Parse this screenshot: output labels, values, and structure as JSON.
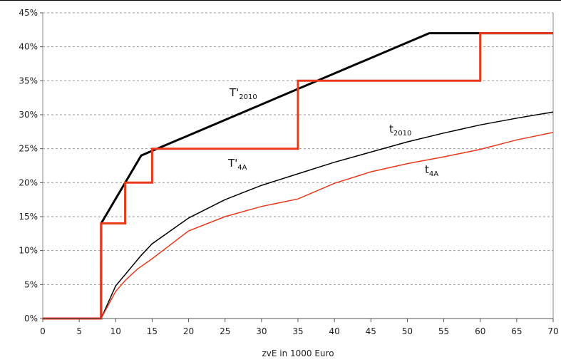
{
  "chart_data": {
    "type": "line",
    "xlabel": "zvE in 1000 Euro",
    "ylabel": "",
    "xlim": [
      0,
      70
    ],
    "ylim": [
      0,
      45
    ],
    "x_ticks": [
      0,
      5,
      10,
      15,
      20,
      25,
      30,
      35,
      40,
      45,
      50,
      55,
      60,
      65,
      70
    ],
    "y_ticks": [
      "0%",
      "5%",
      "10%",
      "15%",
      "20%",
      "25%",
      "30%",
      "35%",
      "40%",
      "45%"
    ],
    "grid": "horizontal dashed",
    "series": [
      {
        "name": "T'2010",
        "label_main": "T'",
        "label_sub": "2010",
        "color": "#000000",
        "stroke": "thick",
        "x": [
          0,
          8,
          8.005,
          13.5,
          53,
          70
        ],
        "y": [
          0,
          0,
          14,
          24,
          42,
          42
        ]
      },
      {
        "name": "T'4A",
        "label_main": "T'",
        "label_sub": "4A",
        "color": "#e8391b",
        "stroke": "thick",
        "x": [
          0,
          8,
          8,
          11.3,
          11.3,
          15,
          15,
          35,
          35,
          60,
          60,
          70
        ],
        "y": [
          0,
          0,
          14,
          14,
          20,
          20,
          25,
          25,
          35,
          35,
          42,
          42
        ]
      },
      {
        "name": "t2010",
        "label_main": "t",
        "label_sub": "2010",
        "color": "#000000",
        "stroke": "thin",
        "x": [
          0,
          8,
          10,
          13.5,
          15,
          20,
          25,
          30,
          35,
          40,
          45,
          50,
          55,
          60,
          65,
          70
        ],
        "y": [
          0,
          0,
          4.8,
          9.3,
          11.0,
          14.8,
          17.5,
          19.6,
          21.3,
          23.0,
          24.5,
          26.0,
          27.3,
          28.5,
          29.5,
          30.4
        ]
      },
      {
        "name": "t4A",
        "label_main": "t",
        "label_sub": "4A",
        "color": "#e8391b",
        "stroke": "thin",
        "x": [
          0,
          8,
          10,
          11.3,
          13,
          15,
          20,
          25,
          30,
          35,
          40,
          45,
          50,
          55,
          60,
          65,
          70
        ],
        "y": [
          0,
          0,
          4.0,
          5.6,
          7.3,
          8.8,
          12.9,
          15.0,
          16.5,
          17.6,
          19.9,
          21.6,
          22.8,
          23.8,
          24.9,
          26.3,
          27.4
        ]
      }
    ]
  }
}
